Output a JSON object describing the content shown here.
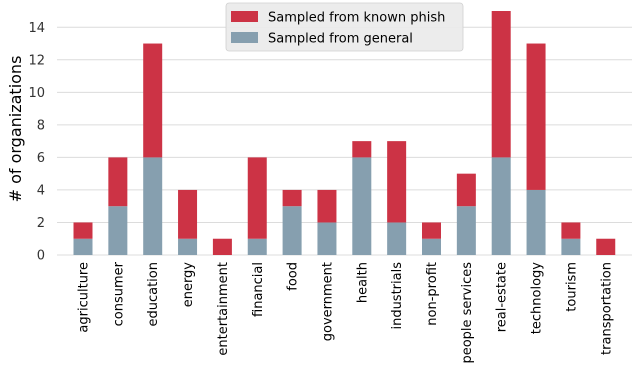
{
  "chart_data": {
    "type": "bar",
    "stacked": true,
    "title": "",
    "xlabel": "",
    "ylabel": "# of organizations",
    "ylim": [
      0,
      15
    ],
    "yticks": [
      0,
      2,
      4,
      6,
      8,
      10,
      12,
      14
    ],
    "grid": "horizontal",
    "legend": "top-center",
    "categories": [
      "agriculture",
      "consumer",
      "education",
      "energy",
      "entertainment",
      "financial",
      "food",
      "government",
      "health",
      "industrials",
      "non-profit",
      "people services",
      "real-estate",
      "technology",
      "tourism",
      "transportation"
    ],
    "series": [
      {
        "name": "Sampled from general",
        "color": "#869faf",
        "values": [
          1,
          3,
          6,
          1,
          0,
          1,
          3,
          2,
          6,
          2,
          1,
          3,
          6,
          4,
          1,
          0
        ]
      },
      {
        "name": "Sampled from known phish",
        "color": "#cc3345",
        "values": [
          1,
          3,
          7,
          3,
          1,
          5,
          1,
          2,
          1,
          5,
          1,
          2,
          9,
          9,
          1,
          1
        ]
      }
    ]
  }
}
